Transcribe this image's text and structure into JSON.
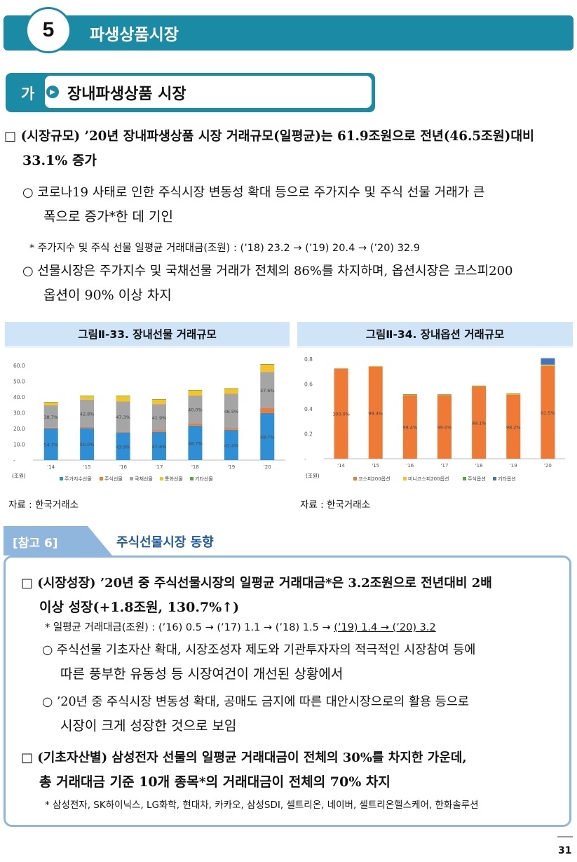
{
  "section": {
    "number": "5",
    "title": "파생상품시장"
  },
  "subsection": {
    "marker": "가",
    "title": "장내파생상품  시장"
  },
  "para1": {
    "line1": "□ (시장규모) ’20년 장내파생상품 시장 거래규모(일평균)는 61.9조원으로 전년(46.5조원)대비",
    "line2": "33.1% 증가"
  },
  "bullet1": {
    "line1": "○ 코로나19 사태로 인한 주식시장 변동성 확대 등으로 주가지수 및 주식 선물 거래가 큰",
    "line2": "폭으로 증가*한 데 기인"
  },
  "note1": "* 주가지수 및 주식 선물 일평균 거래대금(조원) : (’18) 23.2 → (’19) 20.4 → (’20) 32.9",
  "bullet2": {
    "line1": "○ 선물시장은 주가지수 및 국채선물 거래가 전체의 86%를 차지하며, 옵션시장은 코스피200",
    "line2": "옵션이 90% 이상 차지"
  },
  "chart1": {
    "title": "그림Ⅱ-33. 장내선물 거래규모",
    "source": "자료 : 한국거래소"
  },
  "chart2": {
    "title": "그림Ⅱ-34. 장내옵션 거래규모",
    "source": "자료 : 한국거래소"
  },
  "chart_data": [
    {
      "type": "bar",
      "stacked": true,
      "categories": [
        "'14",
        "'15",
        "'16",
        "'17",
        "'18",
        "'19",
        "'20"
      ],
      "ylim": [
        0,
        60
      ],
      "yticks": [
        "60.0",
        "50.0",
        "40.0",
        "30.0",
        "20.0",
        "10.0",
        "-"
      ],
      "unit_label": "(조원)",
      "series": [
        {
          "name": "주가지수선물",
          "color": "#2f8fd5",
          "values": [
            20.0,
            20.3,
            17.5,
            17.9,
            21.9,
            19.2,
            29.8
          ],
          "labels": [
            "54.7%",
            "50.0%",
            "43.9%",
            "47.6%",
            "48.7%",
            "41.4%",
            "48.7%"
          ]
        },
        {
          "name": "주식선물",
          "color": "#ee7a36",
          "values": [
            0.5,
            0.6,
            0.6,
            1.0,
            1.5,
            1.2,
            3.1
          ],
          "labels": []
        },
        {
          "name": "국채선물",
          "color": "#a5a5a5",
          "values": [
            14.2,
            17.4,
            19.0,
            16.6,
            17.5,
            21.6,
            23.0
          ],
          "labels": [
            "38.7%",
            "42.8%",
            "47.3%",
            "41.9%",
            "40.0%",
            "46.5%",
            "37.6%"
          ]
        },
        {
          "name": "통화선물",
          "color": "#f5c425",
          "values": [
            2.0,
            2.4,
            3.7,
            3.0,
            3.5,
            3.4,
            4.9
          ],
          "labels": []
        },
        {
          "name": "기타선물",
          "color": "#5aa346",
          "values": [
            0.1,
            0.1,
            0.1,
            0.1,
            0.1,
            0.1,
            0.1
          ],
          "labels": []
        }
      ]
    },
    {
      "type": "bar",
      "stacked": true,
      "categories": [
        "'14",
        "'15",
        "'16",
        "'17",
        "'18",
        "'19",
        "'20"
      ],
      "ylim": [
        0,
        0.8
      ],
      "yticks": [
        "0.8",
        "0.6",
        "0.4",
        "0.2",
        "-"
      ],
      "unit_label": "(조원)",
      "series": [
        {
          "name": "코스피200옵션",
          "color": "#ee7a36",
          "values": [
            0.725,
            0.74,
            0.51,
            0.51,
            0.58,
            0.515,
            0.745
          ],
          "labels": [
            "100.0%",
            "99.4%",
            "98.4%",
            "99.0%",
            "99.1%",
            "98.2%",
            "91.5%"
          ]
        },
        {
          "name": "미니코스피200옵션",
          "color": "#f5c425",
          "values": [
            0.0,
            0.004,
            0.006,
            0.005,
            0.005,
            0.008,
            0.01
          ],
          "labels": []
        },
        {
          "name": "주식옵션",
          "color": "#5aa346",
          "values": [
            0.0,
            0.0,
            0.002,
            0.002,
            0.002,
            0.002,
            0.002
          ],
          "labels": []
        },
        {
          "name": "기타옵션",
          "color": "#4472c4",
          "values": [
            0.0,
            0.0,
            0.0,
            0.0,
            0.0,
            0.0,
            0.05
          ],
          "labels": []
        }
      ]
    }
  ],
  "reference": {
    "tab": "[참고 6]",
    "title": "주식선물시장  동향",
    "p1_line1": "□ (시장성장) ’20년 중 주식선물시장의 일평균 거래대금*은 3.2조원으로 전년대비 2배",
    "p1_line2": "이상 성장(+1.8조원, 130.7%↑)",
    "note_a": "* 일평균 거래대금(조원) : (’16) 0.5 → (’17) 1.1 → (’18) 1.5 →",
    "note_b": "(’19) 1.4 → (’20) 3.2",
    "b1_line1": "○ 주식선물 기초자산 확대, 시장조성자 제도와 기관투자자의 적극적인 시장참여 등에",
    "b1_line2": "따른 풍부한 유동성 등 시장여건이 개선된 상황에서",
    "b2_line1": "○ ’20년 중 주식시장 변동성 확대, 공매도 금지에 따른 대안시장으로의 활용 등으로",
    "b2_line2": "시장이 크게 성장한 것으로 보임",
    "p2_line1": "□ (기초자산별) 삼성전자 선물의 일평균 거래대금이 전체의 30%를 차지한 가운데,",
    "p2_line2": "총 거래대금 기준 10개 종목*의 거래대금이 전체의 70% 차지",
    "note2": "* 삼성전자, SK하이닉스, LG화학, 현대차, 카카오, 삼성SDI, 셀트리온, 네이버, 셀트리온헬스케어, 한화솔루션"
  },
  "page_number": "31"
}
